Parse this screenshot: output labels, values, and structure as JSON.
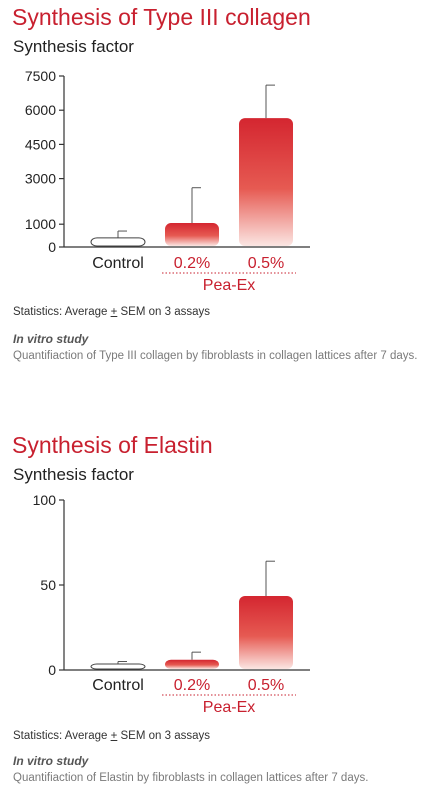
{
  "chart_data": [
    {
      "type": "bar",
      "title": "Synthesis of Type III collagen",
      "ylabel": "Synthesis factor",
      "categories": [
        "Control",
        "0.2%",
        "0.5%"
      ],
      "group_label": "Pea-Ex",
      "values": [
        400,
        1050,
        5650
      ],
      "errors": [
        300,
        1550,
        1450
      ],
      "ylim": [
        0,
        7500
      ],
      "yticks": [
        0,
        1000,
        3000,
        4500,
        6000,
        7500
      ],
      "yticklabels": [
        "0",
        "1000",
        "3000",
        "4500",
        "6000",
        "7500"
      ],
      "grid": false,
      "bar_styles": [
        "outline",
        "gradient-red",
        "gradient-red"
      ],
      "colors": {
        "title": "#c8202f",
        "bar_top": "#d42630",
        "bar_bottom": "#fbe6e3",
        "axis": "#333333",
        "category_red": "#c8202f"
      },
      "stats_prefix": "Statistics: Average ",
      "stats_pm": "+",
      "stats_suffix": " SEM on 3 assays",
      "study_label": "In vitro study",
      "study_description": "Quantifiaction of Type III collagen by fibroblasts in collagen lattices after 7 days."
    },
    {
      "type": "bar",
      "title": "Synthesis of Elastin",
      "ylabel": "Synthesis factor",
      "categories": [
        "Control",
        "0.2%",
        "0.5%"
      ],
      "group_label": "Pea-Ex",
      "values": [
        3.5,
        6,
        43.5
      ],
      "errors": [
        1.5,
        4.5,
        20.5
      ],
      "ylim": [
        0,
        100
      ],
      "yticks": [
        0,
        50,
        100
      ],
      "yticklabels": [
        "0",
        "50",
        "100"
      ],
      "grid": false,
      "bar_styles": [
        "outline",
        "gradient-red",
        "gradient-red"
      ],
      "colors": {
        "title": "#c8202f",
        "bar_top": "#d42630",
        "bar_bottom": "#fbe6e3",
        "axis": "#333333",
        "category_red": "#c8202f"
      },
      "stats_prefix": "Statistics: Average ",
      "stats_pm": "+",
      "stats_suffix": " SEM on 3 assays",
      "study_label": "In vitro study",
      "study_description": "Quantifiaction of Elastin by fibroblasts in collagen lattices after 7 days."
    }
  ]
}
